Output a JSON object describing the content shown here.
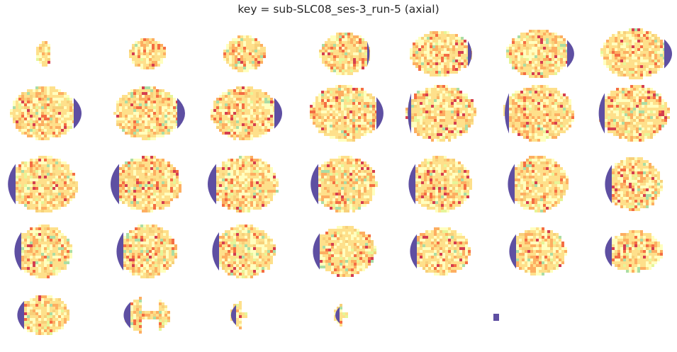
{
  "figure": {
    "title": "key = sub-SLC08_ses-3_run-5 (axial)",
    "colormap": "Spectral",
    "mask_color": "#5e4fa2",
    "slice_count": 33,
    "columns": 7,
    "rows": 5
  }
}
